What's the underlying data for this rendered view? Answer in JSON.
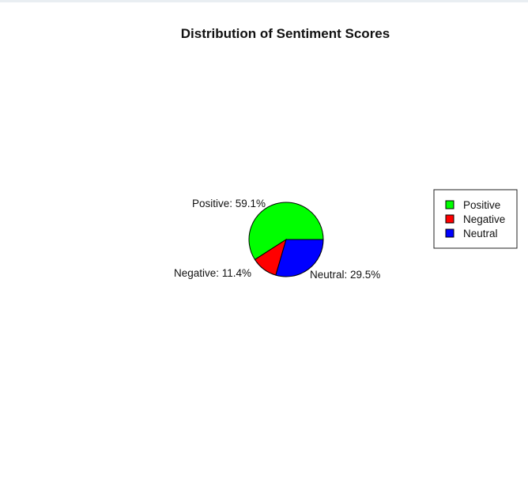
{
  "chart_data": {
    "type": "pie",
    "title": "Distribution of Sentiment Scores",
    "slices": [
      {
        "label": "Positive",
        "value": 59.1,
        "display": "Positive: 59.1%",
        "color": "#00ff00"
      },
      {
        "label": "Negative",
        "value": 11.4,
        "display": "Negative: 11.4%",
        "color": "#ff0000"
      },
      {
        "label": "Neutral",
        "value": 29.5,
        "display": "Neutral: 29.5%",
        "color": "#0000ff"
      }
    ],
    "start": "3 o'clock",
    "direction": "counter-clockwise",
    "legend": {
      "position": "right",
      "entries": [
        "Positive",
        "Negative",
        "Neutral"
      ]
    }
  }
}
